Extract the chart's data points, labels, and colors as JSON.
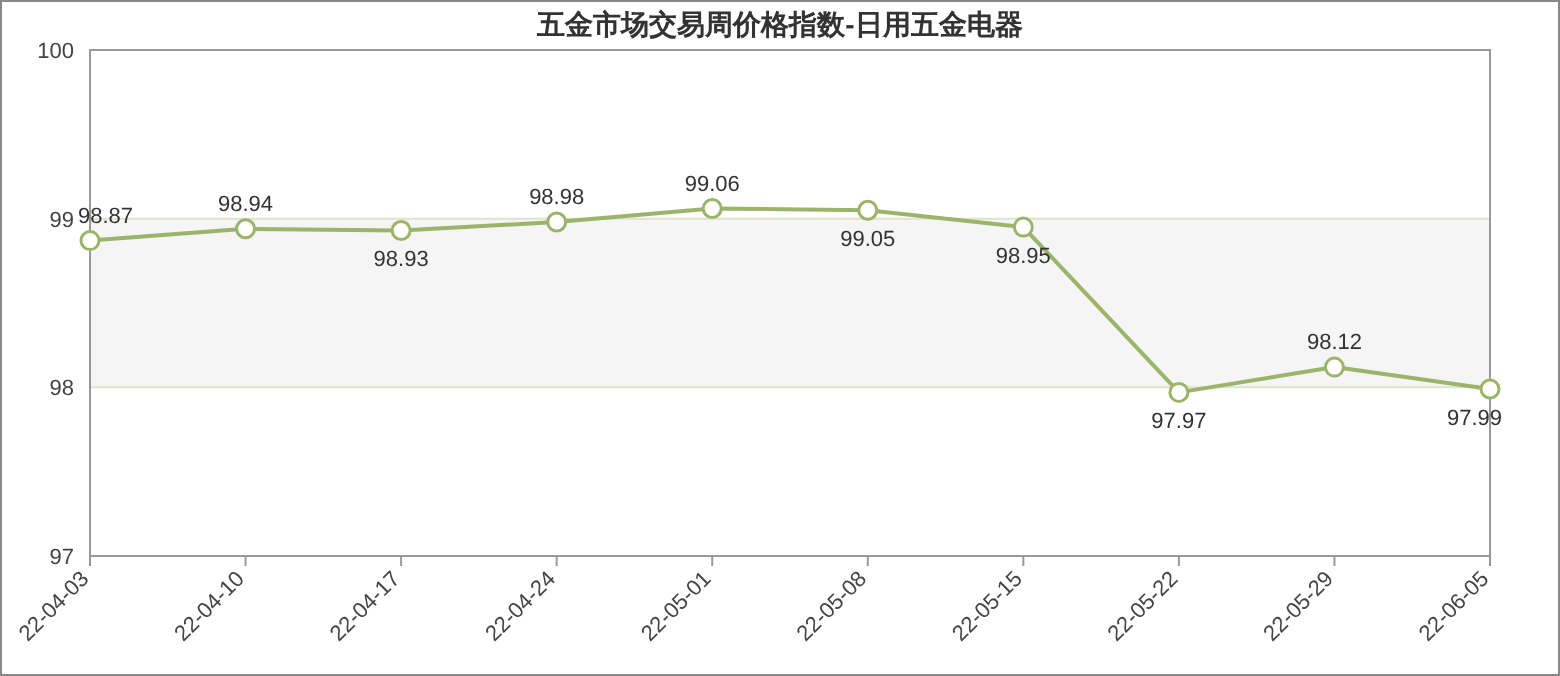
{
  "chart_data": {
    "type": "line",
    "title": "五金市场交易周价格指数-日用五金电器",
    "categories": [
      "22-04-03",
      "22-04-10",
      "22-04-17",
      "22-04-24",
      "22-05-01",
      "22-05-08",
      "22-05-15",
      "22-05-22",
      "22-05-29",
      "22-06-05"
    ],
    "series": [
      {
        "color": "#9bb46a",
        "values": [
          98.87,
          98.94,
          98.93,
          98.98,
          99.06,
          99.05,
          98.95,
          97.97,
          98.12,
          97.99
        ]
      }
    ],
    "ylim": [
      97,
      100
    ],
    "yticks": [
      97,
      98,
      99,
      100
    ],
    "grid": "y",
    "bands": [
      {
        "axis": "y",
        "from": 98,
        "to": 99,
        "color": "#f5f5f5"
      }
    ],
    "marker": "circle",
    "data_labels": true
  }
}
